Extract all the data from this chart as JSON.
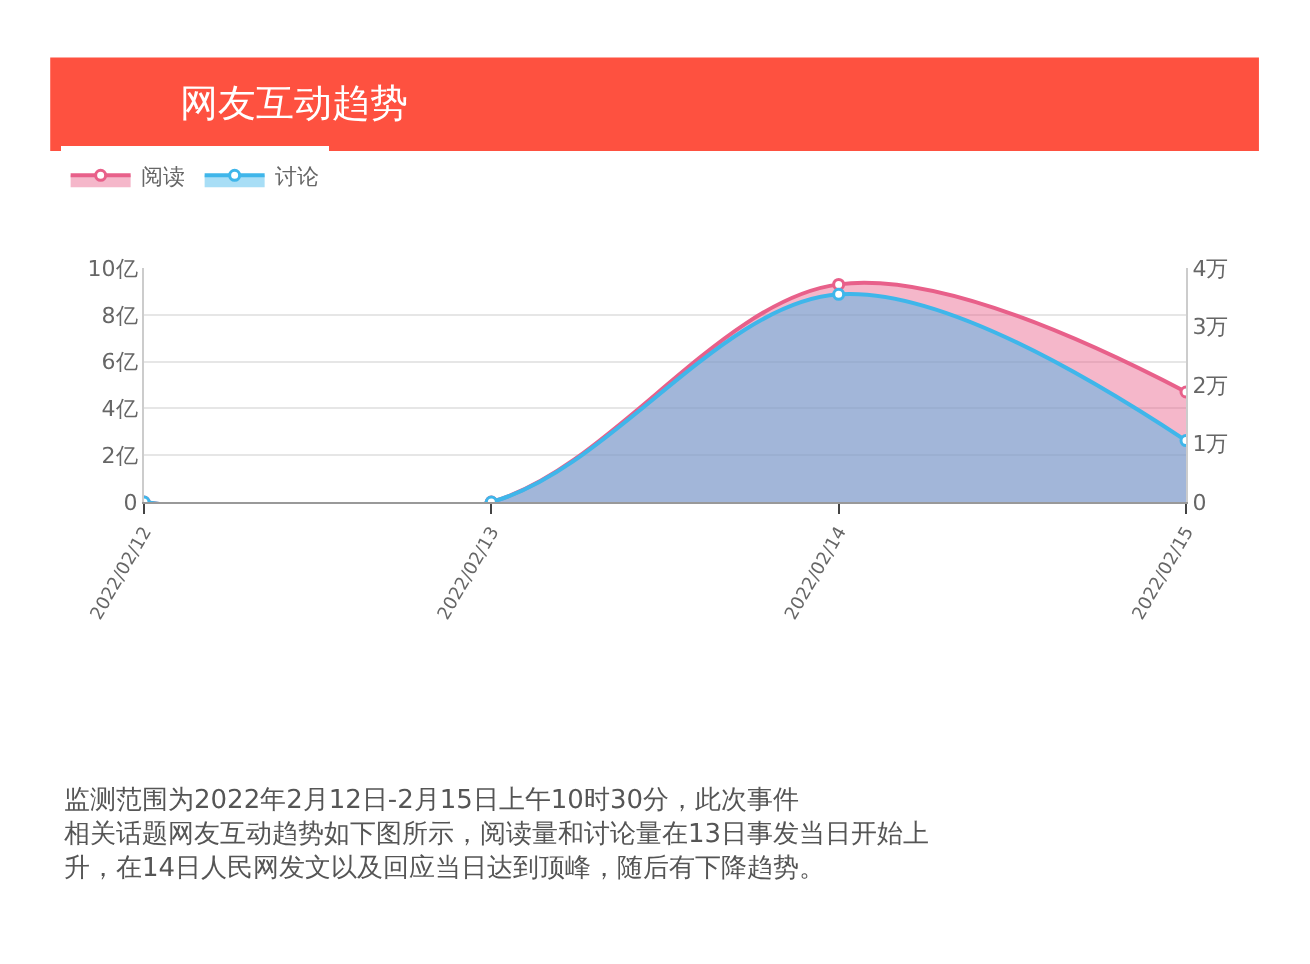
{
  "chart_data": {
    "type": "area",
    "title": "网友互动趋势",
    "categories": [
      "2022/02/12",
      "2022/02/13",
      "2022/02/14",
      "2022/02/15"
    ],
    "series": [
      {
        "name": "阅读",
        "color": "#e8608a",
        "values": [
          0,
          0,
          9.3,
          4.7
        ]
      },
      {
        "name": "讨论",
        "color": "#3fb6ea",
        "values": [
          0,
          0,
          3.55,
          1.05
        ],
        "axis": "y2"
      }
    ],
    "ylim": [
      0,
      10
    ],
    "yticks": [
      0,
      {
        "value": 2,
        "label": "2亿"
      },
      {
        "value": 4,
        "label": "4亿"
      },
      {
        "value": 6,
        "label": "6亿"
      },
      {
        "value": 8,
        "label": "8亿"
      },
      {
        "value": 10,
        "label": "10亿"
      }
    ],
    "y2lim": [
      0,
      4
    ],
    "y2ticks": [
      0,
      {
        "value": 1,
        "label": "1万"
      },
      {
        "value": 2,
        "label": "2万"
      },
      {
        "value": 3,
        "label": "3万"
      },
      {
        "value": 4,
        "label": "4万"
      }
    ],
    "grid": "y",
    "legend": "top left",
    "marker": "circle",
    "annotations": [
      "监测范围为2022年2月12日-2月15日上午10时30分，此次事件相关话题网友互动趋势如下图所示，阅读量和讨论量在13日事发当日开始上升，在14日人民网发文以及回应当日达到顶峰，随后有下降趋势。"
    ]
  }
}
